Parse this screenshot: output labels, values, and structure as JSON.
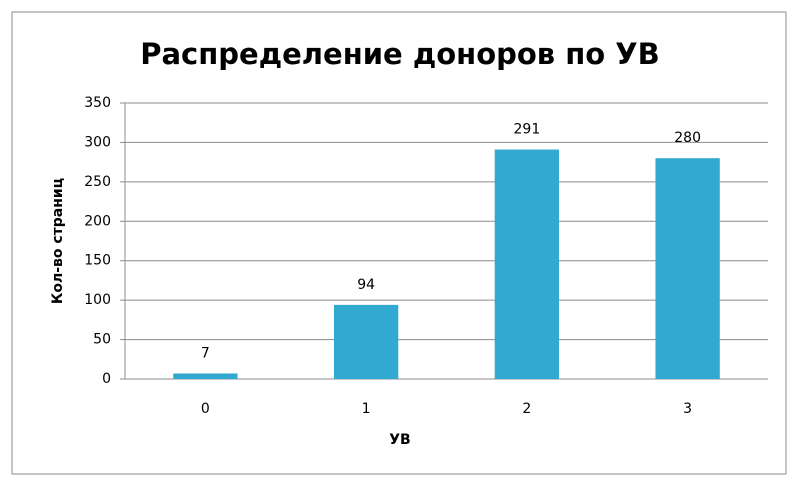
{
  "chart_data": {
    "type": "bar",
    "title": "Распределение доноров по УВ",
    "x_label": "УВ",
    "y_label": "Кол-во страниц",
    "categories": [
      "0",
      "1",
      "2",
      "3"
    ],
    "values": [
      7,
      94,
      291,
      280
    ],
    "color": "#32a9d0",
    "ylim": [
      0,
      350
    ],
    "yticks": [
      0,
      50,
      100,
      150,
      200,
      250,
      300,
      350
    ],
    "grid": true
  }
}
